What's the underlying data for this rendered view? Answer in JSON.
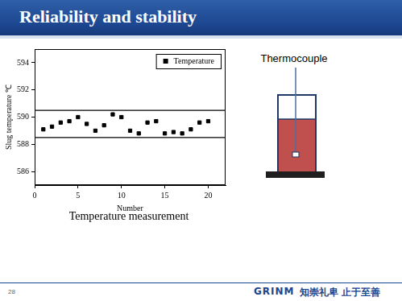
{
  "chart_data": {
    "type": "scatter",
    "x_label": "Number",
    "y_label": "Slug temperature ℃",
    "series": [
      {
        "name": "Temperature",
        "color": "#000000",
        "marker": "square",
        "x": [
          1,
          2,
          3,
          4,
          5,
          6,
          7,
          8,
          9,
          10,
          11,
          12,
          13,
          14,
          15,
          16,
          17,
          18,
          19,
          20
        ],
        "values": [
          589.1,
          589.3,
          589.6,
          589.7,
          590.0,
          589.5,
          589.0,
          589.4,
          590.2,
          590.0,
          589.0,
          588.8,
          589.6,
          589.7,
          588.8,
          588.9,
          588.8,
          589.1,
          589.6,
          589.7
        ]
      }
    ],
    "reference_lines": [
      {
        "y": 588.5,
        "color": "#000000"
      },
      {
        "y": 590.5,
        "color": "#000000"
      }
    ],
    "xlim": [
      0,
      22
    ],
    "xticks": [
      0,
      5,
      10,
      15,
      20
    ],
    "ylim": [
      585,
      595
    ],
    "yticks": [
      586,
      588,
      590,
      592,
      594
    ],
    "legend": "top-right",
    "grid": false
  },
  "slide": {
    "title": "Reliability and stability",
    "caption": "Temperature measurement",
    "diagram_label": "Thermocouple",
    "page_number": 28,
    "logo": "GRINM",
    "motto": "知崇礼卑 止于至善"
  }
}
